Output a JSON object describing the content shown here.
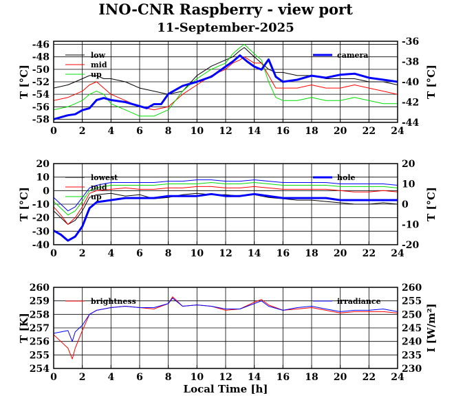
{
  "chart_title": "INO-CNR Raspberry - view port",
  "chart_subtitle": "11-September-2025",
  "x_label": "Local Time [h]",
  "chart_data": [
    {
      "type": "line",
      "panel": "top",
      "xlim": [
        0,
        24
      ],
      "xticks": [
        0,
        2,
        4,
        6,
        8,
        10,
        12,
        14,
        16,
        18,
        20,
        22,
        24
      ],
      "ylim": [
        -58.5,
        -45.5
      ],
      "yticks": [
        -58,
        -56,
        -54,
        -52,
        -50,
        -48,
        -46
      ],
      "ylabel": "T [°C]",
      "y2lim": [
        -44,
        -36
      ],
      "y2ticks": [
        -44,
        -42,
        -40,
        -38,
        -36
      ],
      "y2label": "T [°C]",
      "grid": true,
      "series": [
        {
          "name": "low",
          "color": "#000000",
          "axis": "left",
          "width": 1,
          "x": [
            0,
            1,
            1.5,
            2,
            2.5,
            3,
            3.5,
            4,
            5,
            6,
            7,
            8,
            9,
            10,
            11,
            12,
            12.5,
            13,
            13.3,
            14,
            14.5,
            15,
            15.5,
            16,
            17,
            18,
            19,
            20,
            21,
            22,
            23,
            24
          ],
          "y": [
            -53,
            -52.5,
            -52,
            -51.5,
            -51,
            -51,
            -51.5,
            -51.5,
            -52,
            -53,
            -53.5,
            -54,
            -53.5,
            -51,
            -49.5,
            -48.5,
            -48,
            -47,
            -46.5,
            -48,
            -49,
            -50,
            -50.5,
            -50.5,
            -51,
            -51,
            -51.5,
            -51.5,
            -51.5,
            -52,
            -52,
            -52.5
          ]
        },
        {
          "name": "mid",
          "color": "#ff0000",
          "axis": "left",
          "width": 1,
          "x": [
            0,
            1,
            1.5,
            2,
            2.5,
            3,
            3.5,
            4,
            5,
            6,
            7,
            8,
            9,
            10,
            11,
            12,
            12.5,
            13,
            13.3,
            14,
            14.5,
            15,
            15.5,
            16,
            17,
            18,
            19,
            20,
            21,
            22,
            23,
            24
          ],
          "y": [
            -55,
            -54.5,
            -54,
            -53.5,
            -52.5,
            -52,
            -53,
            -54,
            -55,
            -56,
            -56.5,
            -56,
            -54,
            -52.5,
            -51,
            -50,
            -49,
            -48.5,
            -48,
            -49,
            -49,
            -51,
            -53,
            -53,
            -53,
            -52.5,
            -53,
            -53,
            -52.5,
            -53,
            -53.5,
            -54
          ]
        },
        {
          "name": "up",
          "color": "#00dd00",
          "axis": "left",
          "width": 1,
          "x": [
            0,
            1,
            1.5,
            2,
            2.5,
            3,
            3.5,
            4,
            5,
            6,
            7,
            8,
            9,
            10,
            11,
            12,
            12.5,
            13,
            13.3,
            14,
            14.5,
            15,
            15.5,
            16,
            17,
            18,
            19,
            20,
            21,
            22,
            23,
            24
          ],
          "y": [
            -56.5,
            -56,
            -55.5,
            -55,
            -54,
            -53.5,
            -54,
            -55.5,
            -56.5,
            -57.5,
            -57.5,
            -56.5,
            -53.5,
            -51.5,
            -50,
            -49,
            -47.5,
            -46.5,
            -46,
            -47.5,
            -48.5,
            -52,
            -54.5,
            -55,
            -55,
            -54.5,
            -55,
            -55,
            -54.5,
            -55,
            -55.5,
            -55.5
          ]
        },
        {
          "name": "camera",
          "color": "#0000ff",
          "axis": "right",
          "width": 3,
          "x": [
            0,
            0.5,
            1,
            1.5,
            2,
            2.5,
            3,
            3.5,
            4,
            5,
            6,
            6.5,
            7,
            7.5,
            8,
            8.5,
            9,
            10,
            11,
            12,
            12.5,
            13,
            13.5,
            14,
            14.5,
            15,
            15.5,
            16,
            17,
            18,
            19,
            20,
            21,
            22,
            23,
            24
          ],
          "y": [
            -43.7,
            -43.5,
            -43.3,
            -43.2,
            -42.8,
            -42.6,
            -41.8,
            -41.6,
            -41.8,
            -42,
            -42.4,
            -42.6,
            -42.2,
            -42.2,
            -41.2,
            -40.8,
            -40.4,
            -40,
            -39.5,
            -38.5,
            -38,
            -37.4,
            -38,
            -38.5,
            -38.8,
            -37.8,
            -39.5,
            -40,
            -39.8,
            -39.4,
            -39.6,
            -39.3,
            -39.2,
            -39.6,
            -39.8,
            -40
          ]
        }
      ]
    },
    {
      "type": "line",
      "panel": "middle",
      "xlim": [
        0,
        24
      ],
      "xticks": [
        0,
        2,
        4,
        6,
        8,
        10,
        12,
        14,
        16,
        18,
        20,
        22,
        24
      ],
      "ylim": [
        -40,
        20
      ],
      "yticks": [
        -40,
        -30,
        -20,
        -10,
        0,
        10,
        20
      ],
      "ylabel": "T [°C]",
      "y2lim": [
        -20,
        20
      ],
      "y2ticks": [
        -20,
        -10,
        0,
        10,
        20
      ],
      "y2label": "T [°C]",
      "grid": true,
      "series": [
        {
          "name": "lowest",
          "color": "#000000",
          "axis": "left",
          "width": 1,
          "x": [
            0,
            0.5,
            1,
            1.5,
            2,
            2.5,
            3,
            4,
            5,
            6,
            7,
            8,
            9,
            10,
            11,
            12,
            13,
            14,
            15,
            16,
            17,
            18,
            19,
            20,
            21,
            22,
            23,
            24
          ],
          "y": [
            -15,
            -20,
            -25,
            -22,
            -15,
            -5,
            -3,
            -2,
            -4,
            -3,
            -6,
            -5,
            -3,
            -2,
            -3,
            -3,
            -4,
            -3,
            -5,
            -6,
            -7,
            -7,
            -8,
            -9,
            -10,
            -10,
            -9,
            -10
          ]
        },
        {
          "name": "mid",
          "color": "#ff0000",
          "axis": "left",
          "width": 1,
          "x": [
            0,
            0.5,
            1,
            1.5,
            2,
            2.5,
            3,
            4,
            5,
            6,
            7,
            8,
            9,
            10,
            11,
            12,
            13,
            14,
            15,
            16,
            17,
            18,
            19,
            20,
            21,
            22,
            23,
            24
          ],
          "y": [
            -12,
            -18,
            -25,
            -20,
            -12,
            -2,
            0,
            1,
            2,
            1,
            1,
            2,
            2,
            3,
            3,
            2,
            2,
            3,
            2,
            1,
            1,
            1,
            1,
            0,
            -1,
            -1,
            0,
            -1
          ]
        },
        {
          "name": "up",
          "color": "#00dd00",
          "axis": "left",
          "width": 1,
          "x": [
            0,
            0.5,
            1,
            1.5,
            2,
            2.5,
            3,
            4,
            5,
            6,
            7,
            8,
            9,
            10,
            11,
            12,
            13,
            14,
            15,
            16,
            17,
            18,
            19,
            20,
            21,
            22,
            23,
            24
          ],
          "y": [
            -8,
            -13,
            -18,
            -15,
            -8,
            0,
            2,
            4,
            4,
            4,
            4,
            5,
            5,
            5,
            6,
            5,
            5,
            6,
            5,
            4,
            4,
            4,
            4,
            3,
            3,
            3,
            3,
            2
          ]
        },
        {
          "name": "",
          "color": "#0000ff",
          "axis": "left",
          "width": 1,
          "x": [
            0,
            0.5,
            1,
            1.5,
            2,
            2.5,
            3,
            4,
            5,
            6,
            7,
            8,
            9,
            10,
            11,
            12,
            13,
            14,
            15,
            16,
            17,
            18,
            19,
            20,
            21,
            22,
            23,
            24
          ],
          "y": [
            -5,
            -10,
            -15,
            -12,
            -5,
            2,
            4,
            6,
            6,
            6,
            6,
            7,
            7,
            8,
            8,
            7,
            7,
            8,
            7,
            6,
            6,
            6,
            6,
            5,
            5,
            5,
            5,
            4
          ]
        },
        {
          "name": "hole",
          "color": "#0000ff",
          "axis": "right",
          "width": 3,
          "x": [
            0,
            0.5,
            1,
            1.5,
            2,
            2.5,
            3,
            4,
            5,
            6,
            7,
            8,
            9,
            10,
            11,
            12,
            13,
            14,
            15,
            16,
            17,
            18,
            19,
            20,
            21,
            22,
            23,
            24
          ],
          "y": [
            -13,
            -15,
            -18,
            -16,
            -11,
            -2,
            1,
            2,
            3,
            3,
            3,
            4,
            4,
            4,
            5,
            4,
            4,
            5,
            4,
            3,
            3,
            3,
            3,
            2,
            2,
            2,
            2,
            2
          ]
        }
      ]
    },
    {
      "type": "line",
      "panel": "bottom",
      "xlim": [
        0,
        24
      ],
      "xticks": [
        0,
        2,
        4,
        6,
        8,
        10,
        12,
        14,
        16,
        18,
        20,
        22,
        24
      ],
      "ylim": [
        254,
        260
      ],
      "yticks": [
        254,
        255,
        256,
        257,
        258,
        259,
        260
      ],
      "ylabel": "T [K]",
      "y2lim": [
        230,
        260
      ],
      "y2ticks": [
        230,
        235,
        240,
        245,
        250,
        255,
        260
      ],
      "y2label": "I [W/m²]",
      "grid": true,
      "series": [
        {
          "name": "brightness",
          "color": "#ff0000",
          "axis": "left",
          "width": 1,
          "x": [
            0,
            0.5,
            1,
            1.3,
            1.5,
            2,
            2.5,
            3,
            4,
            5,
            6,
            7,
            8,
            8.3,
            9,
            10,
            11,
            12,
            13,
            14,
            14.5,
            15,
            16,
            17,
            18,
            19,
            20,
            21,
            22,
            23,
            24
          ],
          "y": [
            256.5,
            256,
            255.5,
            254.7,
            255.5,
            256.8,
            258,
            258.3,
            258.5,
            258.6,
            258.5,
            258.4,
            258.8,
            259.3,
            258.6,
            258.7,
            258.6,
            258.3,
            258.4,
            258.9,
            259.1,
            258.7,
            258.3,
            258.4,
            258.5,
            258.3,
            258.1,
            258.2,
            258.2,
            258.2,
            258.1
          ]
        },
        {
          "name": "irradiance",
          "color": "#0000ff",
          "axis": "right",
          "width": 1,
          "x": [
            0,
            0.5,
            1,
            1.3,
            1.5,
            2,
            2.5,
            3,
            4,
            5,
            6,
            7,
            8,
            8.3,
            9,
            10,
            11,
            12,
            13,
            14,
            14.5,
            15,
            16,
            17,
            18,
            19,
            20,
            21,
            22,
            23,
            24
          ],
          "y": [
            243,
            243.5,
            244,
            240,
            243.5,
            246,
            250,
            251.5,
            252.5,
            253,
            252.5,
            252.5,
            254,
            256,
            253,
            253.5,
            253,
            252,
            252,
            254,
            255,
            253,
            251.5,
            252.5,
            253,
            252,
            251,
            251.5,
            251.5,
            252,
            251
          ]
        }
      ]
    }
  ]
}
